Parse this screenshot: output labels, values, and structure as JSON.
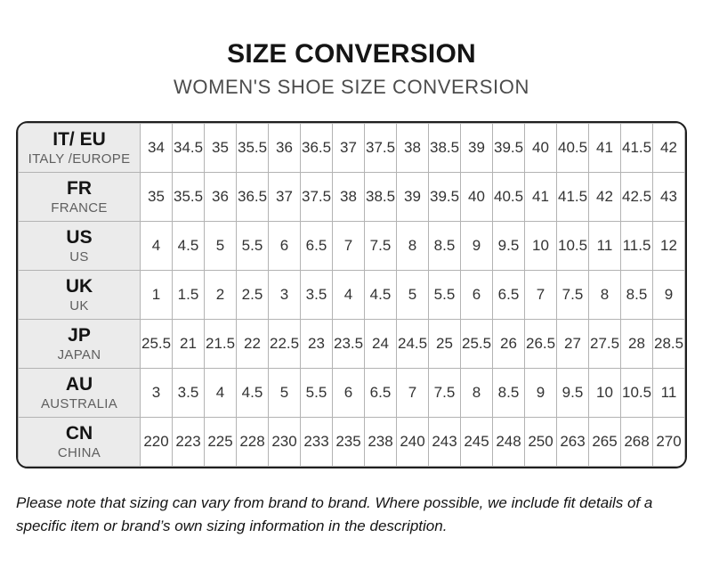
{
  "header": {
    "title": "SIZE CONVERSION",
    "subtitle": "WOMEN'S SHOE SIZE CONVERSION"
  },
  "table": {
    "rows": [
      {
        "code": "IT/ EU",
        "region": "ITALY /EUROPE",
        "values": [
          "34",
          "34.5",
          "35",
          "35.5",
          "36",
          "36.5",
          "37",
          "37.5",
          "38",
          "38.5",
          "39",
          "39.5",
          "40",
          "40.5",
          "41",
          "41.5",
          "42"
        ]
      },
      {
        "code": "FR",
        "region": "FRANCE",
        "values": [
          "35",
          "35.5",
          "36",
          "36.5",
          "37",
          "37.5",
          "38",
          "38.5",
          "39",
          "39.5",
          "40",
          "40.5",
          "41",
          "41.5",
          "42",
          "42.5",
          "43"
        ]
      },
      {
        "code": "US",
        "region": "US",
        "values": [
          "4",
          "4.5",
          "5",
          "5.5",
          "6",
          "6.5",
          "7",
          "7.5",
          "8",
          "8.5",
          "9",
          "9.5",
          "10",
          "10.5",
          "11",
          "11.5",
          "12"
        ]
      },
      {
        "code": "UK",
        "region": "UK",
        "values": [
          "1",
          "1.5",
          "2",
          "2.5",
          "3",
          "3.5",
          "4",
          "4.5",
          "5",
          "5.5",
          "6",
          "6.5",
          "7",
          "7.5",
          "8",
          "8.5",
          "9"
        ]
      },
      {
        "code": "JP",
        "region": "JAPAN",
        "values": [
          "25.5",
          "21",
          "21.5",
          "22",
          "22.5",
          "23",
          "23.5",
          "24",
          "24.5",
          "25",
          "25.5",
          "26",
          "26.5",
          "27",
          "27.5",
          "28",
          "28.5"
        ]
      },
      {
        "code": "AU",
        "region": "AUSTRALIA",
        "values": [
          "3",
          "3.5",
          "4",
          "4.5",
          "5",
          "5.5",
          "6",
          "6.5",
          "7",
          "7.5",
          "8",
          "8.5",
          "9",
          "9.5",
          "10",
          "10.5",
          "11"
        ]
      },
      {
        "code": "CN",
        "region": "CHINA",
        "values": [
          "220",
          "223",
          "225",
          "228",
          "230",
          "233",
          "235",
          "238",
          "240",
          "243",
          "245",
          "248",
          "250",
          "263",
          "265",
          "268",
          "270"
        ]
      }
    ]
  },
  "footer": {
    "note": "Please note that sizing can vary from brand to brand. Where possible, we include fit details of a specific item or brand’s own sizing information in the description."
  },
  "colors": {
    "outer_border": "#1f1f1f",
    "grid_line": "#b3b3b3",
    "row_header_bg": "#ebebeb",
    "title_text": "#151515",
    "subtitle_text": "#4c4c4c"
  }
}
